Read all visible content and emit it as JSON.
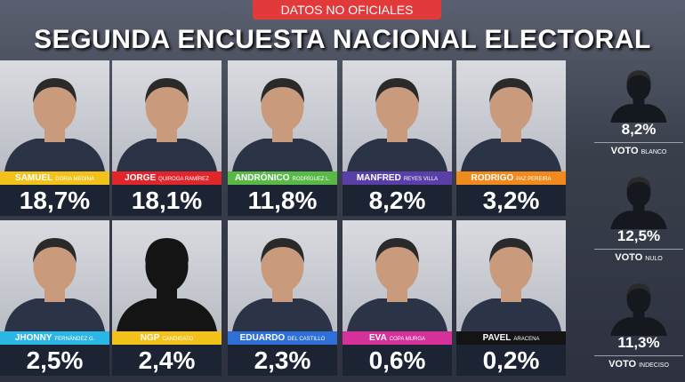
{
  "header": {
    "badge": "DATOS NO OFICIALES",
    "title": "SEGUNDA ENCUESTA NACIONAL ELECTORAL"
  },
  "candidates": [
    {
      "name": "SAMUEL",
      "surname": "DORIA MEDINA",
      "percent": "18,7%",
      "color": "#f2c21b"
    },
    {
      "name": "JORGE",
      "surname": "QUIROGA RAMÍREZ",
      "percent": "18,1%",
      "color": "#e0262b"
    },
    {
      "name": "ANDRÓNICO",
      "surname": "RODRÍGUEZ L.",
      "percent": "11,8%",
      "color": "#58b947"
    },
    {
      "name": "MANFRED",
      "surname": "REYES VILLA",
      "percent": "8,2%",
      "color": "#5b3fa8"
    },
    {
      "name": "RODRIGO",
      "surname": "PAZ PEREIRA",
      "percent": "3,2%",
      "color": "#f08a1c"
    },
    {
      "name": "JHONNY",
      "surname": "FERNÁNDEZ G.",
      "percent": "2,5%",
      "color": "#2bb7e6"
    },
    {
      "name": "NGP",
      "surname": "CANDIDATO",
      "percent": "2,4%",
      "color": "#f2c21b"
    },
    {
      "name": "EDUARDO",
      "surname": "DEL CASTILLO",
      "percent": "2,3%",
      "color": "#2f6fd8"
    },
    {
      "name": "EVA",
      "surname": "COPA MURGA",
      "percent": "0,6%",
      "color": "#d6309a"
    },
    {
      "name": "PAVEL",
      "surname": "ARACENA",
      "percent": "0,2%",
      "color": "#141414"
    }
  ],
  "other_votes": [
    {
      "percent": "8,2%",
      "label": "VOTO",
      "kind": "BLANCO"
    },
    {
      "percent": "12,5%",
      "label": "VOTO",
      "kind": "NULO"
    },
    {
      "percent": "11,3%",
      "label": "VOTO",
      "kind": "INDECISO"
    }
  ]
}
